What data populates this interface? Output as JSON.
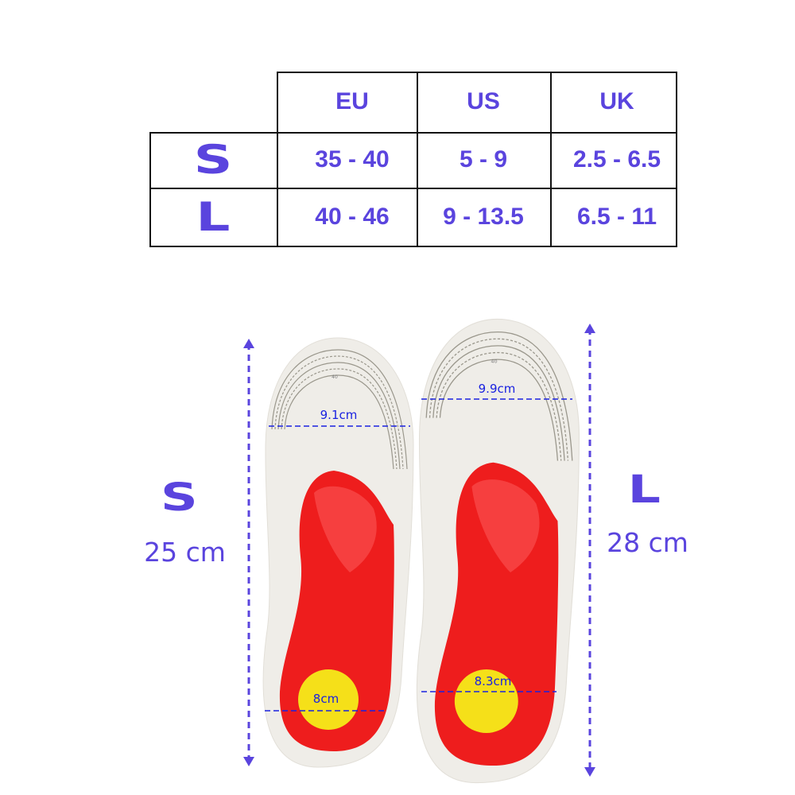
{
  "size_chart": {
    "columns": [
      "EU",
      "US",
      "UK"
    ],
    "rows": [
      {
        "size": "S",
        "EU": "35 - 40",
        "US": "5 - 9",
        "UK": "2.5 - 6.5"
      },
      {
        "size": "L",
        "EU": "40 - 46",
        "US": "9 - 13.5",
        "UK": "6.5 - 11"
      }
    ]
  },
  "insoles": {
    "small": {
      "size": "S",
      "length": "25 cm",
      "forefoot_width": "9.1cm",
      "heel_width": "8cm"
    },
    "large": {
      "size": "L",
      "length": "28 cm",
      "forefoot_width": "9.9cm",
      "heel_width": "8.3cm"
    },
    "toe_gauge_marks": [
      "46",
      "45",
      "44",
      "43",
      "42",
      "41",
      "40"
    ]
  },
  "colors": {
    "accent": "#5a44de",
    "measure_line": "#1a22e0",
    "insole_red": "#ee1d1d",
    "heel_pad": "#f5e019",
    "insole_base": "#efede8"
  }
}
